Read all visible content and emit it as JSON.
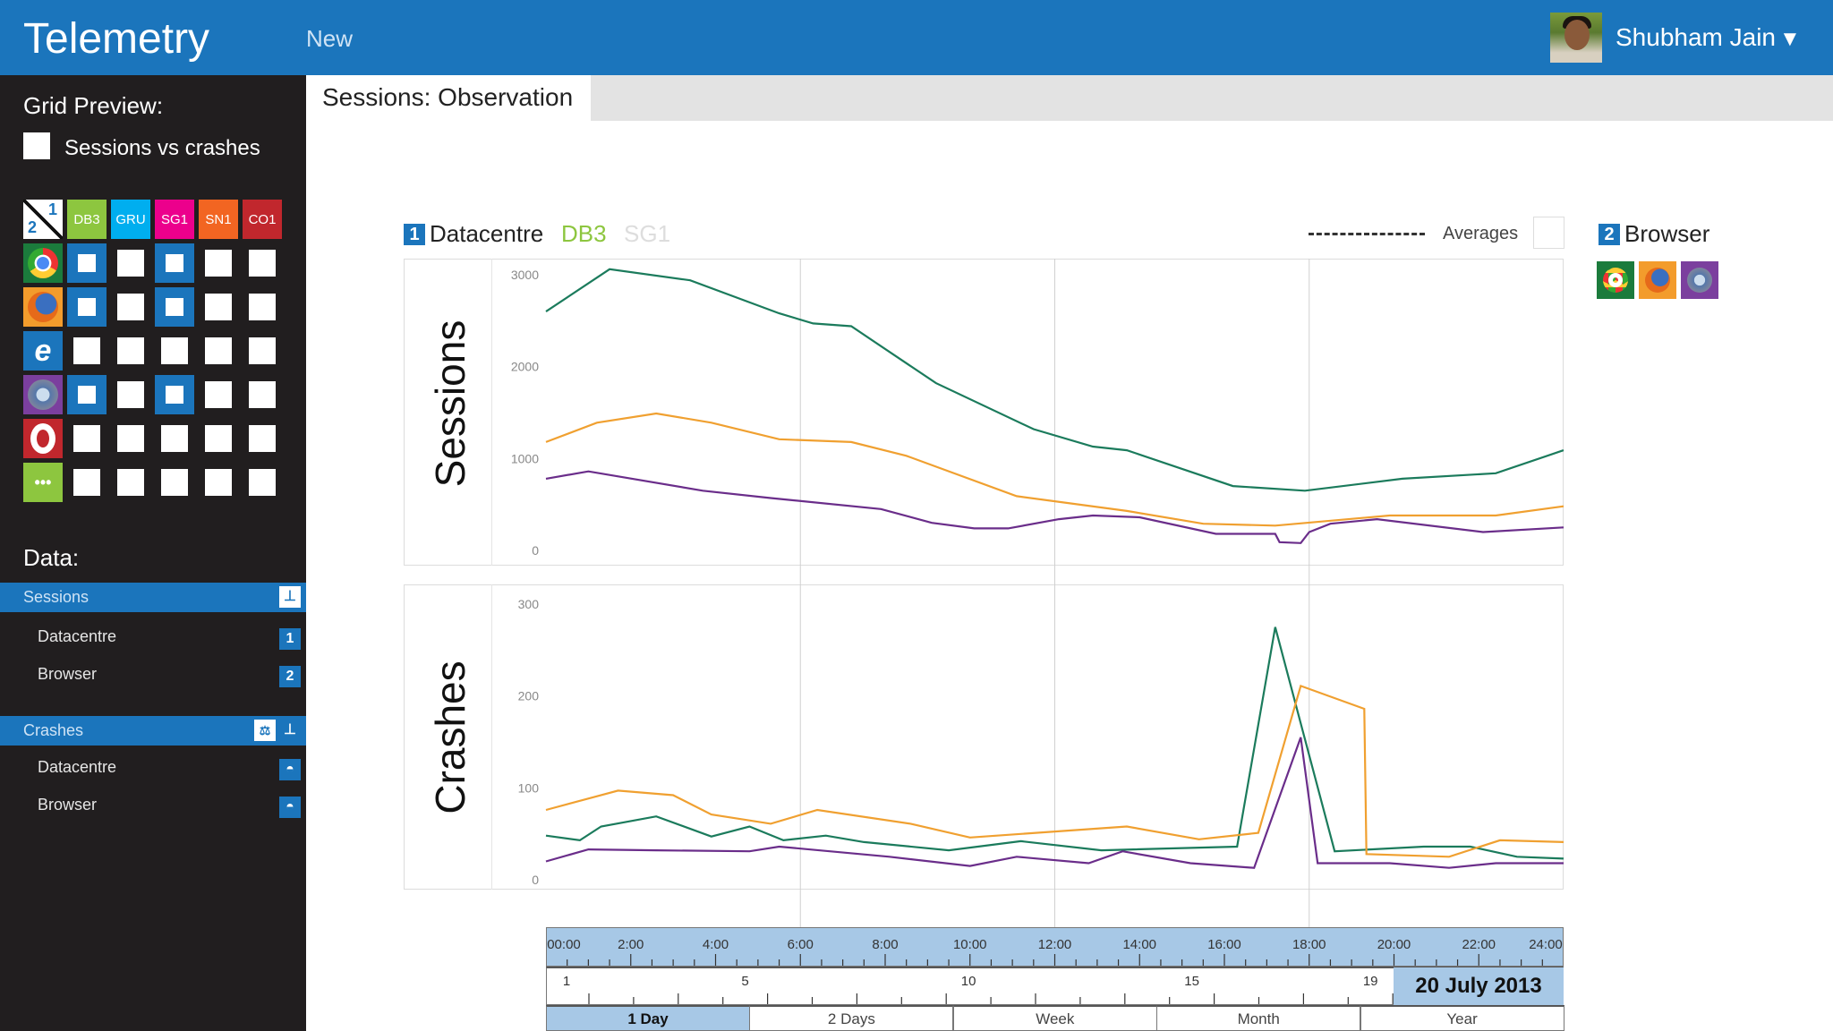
{
  "header": {
    "title": "Telemetry",
    "new_label": "New",
    "user_name": "Shubham Jain",
    "caret": "▼"
  },
  "sidebar": {
    "grid_title": "Grid Preview:",
    "checkbox_label": "Sessions vs crashes",
    "corner": {
      "top": "1",
      "bottom": "2"
    },
    "columns": [
      {
        "label": "DB3",
        "color": "#8dc63f"
      },
      {
        "label": "GRU",
        "color": "#00aeef"
      },
      {
        "label": "SG1",
        "color": "#ec008c"
      },
      {
        "label": "SN1",
        "color": "#f26522"
      },
      {
        "label": "CO1",
        "color": "#c1272d"
      }
    ],
    "rows": [
      {
        "icon": "chrome-icon",
        "color": "#1b7b3c",
        "checked": [
          true,
          false,
          true,
          false,
          false
        ]
      },
      {
        "icon": "firefox-icon",
        "color": "#f39c2c",
        "checked": [
          true,
          false,
          true,
          false,
          false
        ]
      },
      {
        "icon": "internet-explorer-icon",
        "color": "#1b75bc",
        "checked": [
          false,
          false,
          false,
          false,
          false
        ]
      },
      {
        "icon": "safari-icon",
        "color": "#7b3f9e",
        "checked": [
          true,
          false,
          true,
          false,
          false
        ]
      },
      {
        "icon": "opera-icon",
        "color": "#c1272d",
        "checked": [
          false,
          false,
          false,
          false,
          false
        ]
      },
      {
        "icon": "more-icon",
        "color": "#8dc63f",
        "checked": [
          false,
          false,
          false,
          false,
          false
        ]
      }
    ],
    "data_title": "Data:",
    "sessions": {
      "label": "Sessions",
      "items": [
        {
          "label": "Datacentre",
          "badge": "1"
        },
        {
          "label": "Browser",
          "badge": "2"
        }
      ]
    },
    "crashes": {
      "label": "Crashes",
      "items": [
        {
          "label": "Datacentre"
        },
        {
          "label": "Browser"
        }
      ]
    }
  },
  "main": {
    "tab": "Sessions: Observation",
    "legend": {
      "num1": "1",
      "dim1": "Datacentre",
      "sel1": "DB3",
      "sel2": "SG1",
      "averages": "Averages",
      "num2": "2",
      "dim2": "Browser"
    },
    "timeline": {
      "hours": [
        "00:00",
        "2:00",
        "4:00",
        "6:00",
        "8:00",
        "10:00",
        "12:00",
        "14:00",
        "16:00",
        "18:00",
        "20:00",
        "22:00",
        "24:00"
      ],
      "days": [
        "1",
        "5",
        "10",
        "15",
        "19"
      ],
      "date": "20 July 2013",
      "periods": [
        "1 Day",
        "2 Days",
        "Week",
        "Month",
        "Year"
      ],
      "selected_period": "1 Day"
    }
  },
  "chart_data": [
    {
      "type": "line",
      "ylabel": "Sessions",
      "xlim": [
        0,
        24
      ],
      "ylim": [
        0,
        3000
      ],
      "yticks": [
        "0",
        "1000",
        "2000",
        "3000"
      ],
      "series": [
        {
          "color": "#1b7b5c",
          "x": [
            0,
            1.5,
            3.4,
            5.5,
            6.3,
            7.2,
            9.2,
            11.5,
            12.9,
            13.7,
            16.2,
            17.9,
            20.2,
            22.4,
            24
          ],
          "y": [
            2600,
            3060,
            2940,
            2580,
            2470,
            2440,
            1820,
            1320,
            1130,
            1090,
            700,
            650,
            780,
            840,
            1090
          ]
        },
        {
          "color": "#f0a030",
          "x": [
            0,
            1.2,
            2.6,
            3.9,
            5.5,
            7.2,
            8.5,
            11.1,
            13.7,
            15.5,
            17.2,
            19.9,
            22.4,
            24
          ],
          "y": [
            1180,
            1390,
            1490,
            1390,
            1210,
            1180,
            1030,
            590,
            430,
            290,
            270,
            380,
            380,
            480
          ]
        },
        {
          "color": "#6a2d8a",
          "x": [
            0,
            1,
            3.7,
            5.3,
            7.9,
            9.1,
            10.1,
            10.9,
            12.1,
            12.9,
            14,
            15.8,
            17.2,
            17.3,
            17.8,
            18,
            18.5,
            19.6,
            22.1,
            24
          ],
          "y": [
            780,
            860,
            650,
            570,
            450,
            300,
            240,
            240,
            340,
            380,
            360,
            180,
            180,
            90,
            80,
            200,
            290,
            340,
            200,
            250
          ]
        }
      ]
    },
    {
      "type": "line",
      "ylabel": "Crashes",
      "xlim": [
        0,
        24
      ],
      "ylim": [
        0,
        300
      ],
      "yticks": [
        "0",
        "100",
        "200",
        "300"
      ],
      "series": [
        {
          "color": "#1b7b5c",
          "x": [
            0,
            0.8,
            1.3,
            2.6,
            3.9,
            4.8,
            5.6,
            6.6,
            7.5,
            9.5,
            11.2,
            13.1,
            16.3,
            17.2,
            18.6,
            20.7,
            21.8,
            22.9,
            24
          ],
          "y": [
            48,
            43,
            58,
            69,
            47,
            58,
            43,
            48,
            41,
            32,
            42,
            32,
            36,
            275,
            31,
            36,
            36,
            25,
            23
          ]
        },
        {
          "color": "#f0a030",
          "x": [
            0,
            1.7,
            3,
            3.9,
            5.3,
            6.4,
            8.6,
            10,
            13.7,
            15.4,
            16.8,
            17.8,
            19.3,
            19.35,
            21.3,
            22.5,
            24
          ],
          "y": [
            76,
            97,
            92,
            71,
            61,
            76,
            61,
            46,
            58,
            44,
            51,
            211,
            186,
            28,
            25,
            43,
            41
          ]
        },
        {
          "color": "#6a2d8a",
          "x": [
            0,
            1,
            2.6,
            4.8,
            5.5,
            8.1,
            10,
            11.1,
            12.8,
            13.6,
            15.2,
            16.7,
            17.8,
            18.2,
            19.9,
            21.3,
            22.4,
            24
          ],
          "y": [
            20,
            33,
            32,
            31,
            36,
            25,
            15,
            25,
            18,
            31,
            18,
            13,
            155,
            18,
            18,
            13,
            18,
            18
          ]
        }
      ]
    }
  ]
}
